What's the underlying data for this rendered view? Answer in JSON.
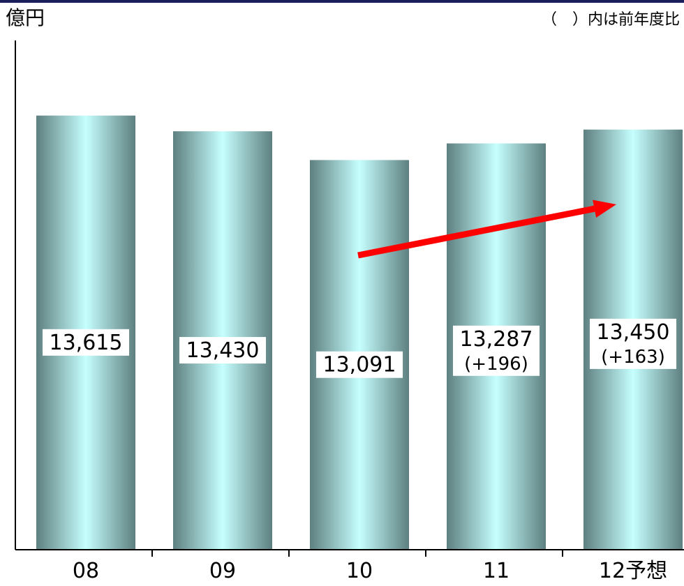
{
  "chart_data": {
    "type": "bar",
    "title": "",
    "ylabel": "億円",
    "note": "（　）内は前年度比",
    "categories": [
      "08",
      "09",
      "10",
      "11",
      "12予想"
    ],
    "values": [
      13615,
      13430,
      13091,
      13287,
      13450
    ],
    "value_labels": [
      "13,615",
      "13,430",
      "13,091",
      "13,287",
      "13,450"
    ],
    "change_labels": [
      "",
      "",
      "",
      "(+196)",
      "(+163)"
    ],
    "ylim": [
      8500,
      14500
    ],
    "grid": false,
    "trend_arrow": {
      "from_category": "10",
      "to_category": "12予想"
    },
    "colors": {
      "bar_edge": "#5e7f7f",
      "bar_center": "#c6ffff",
      "arrow": "#ff0000",
      "topbar": "#1a1f5c"
    }
  }
}
